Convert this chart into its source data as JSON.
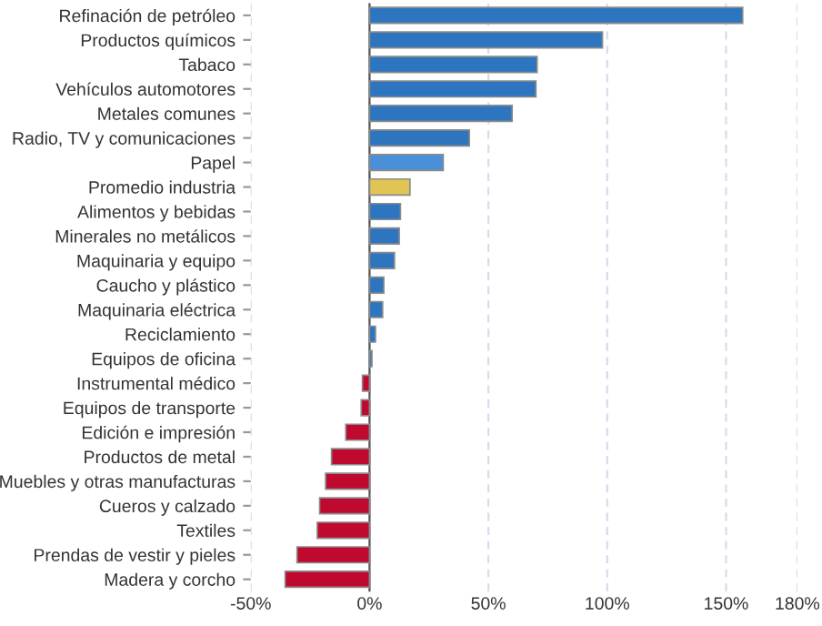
{
  "chart_data": {
    "type": "bar",
    "orientation": "horizontal",
    "categories": [
      "Refinación de petróleo",
      "Productos químicos",
      "Tabaco",
      "Vehículos automotores",
      "Metales comunes",
      "Radio, TV y comunicaciones",
      "Papel",
      "Promedio industria",
      "Alimentos y bebidas",
      "Minerales no metálicos",
      "Maquinaria y equipo",
      "Caucho y plástico",
      "Maquinaria eléctrica",
      "Reciclamiento",
      "Equipos de oficina",
      "Instrumental médico",
      "Equipos de transporte",
      "Edición e impresión",
      "Productos de metal",
      "Muebles y otras manufacturas",
      "Cueros y calzado",
      "Textiles",
      "Prendas de vestir y pieles",
      "Madera y corcho"
    ],
    "values": [
      157,
      98,
      70.5,
      70,
      60,
      42,
      31,
      17,
      13,
      12.5,
      10.5,
      6,
      5.5,
      2.5,
      1,
      -3,
      -3.5,
      -10,
      -16,
      -18.5,
      -21,
      -22,
      -30.5,
      -35.5
    ],
    "colors": [
      "#2e75c0",
      "#2e75c0",
      "#2e75c0",
      "#2e75c0",
      "#2e75c0",
      "#2e75c0",
      "#4a90d9",
      "#e0c555",
      "#2e75c0",
      "#2e75c0",
      "#2e75c0",
      "#2e75c0",
      "#2e75c0",
      "#2e75c0",
      "#2e75c0",
      "#c0092f",
      "#c0092f",
      "#c0092f",
      "#c0092f",
      "#c0092f",
      "#c0092f",
      "#c0092f",
      "#c0092f",
      "#c0092f"
    ],
    "xlim": [
      -50,
      180
    ],
    "xticks": [
      {
        "value": -50,
        "label": "-50%"
      },
      {
        "value": 0,
        "label": "0%"
      },
      {
        "value": 50,
        "label": "50%"
      },
      {
        "value": 100,
        "label": "100%"
      },
      {
        "value": 150,
        "label": "150%"
      },
      {
        "value": 180,
        "label": "180%"
      }
    ],
    "grid": "x",
    "legend": false
  }
}
